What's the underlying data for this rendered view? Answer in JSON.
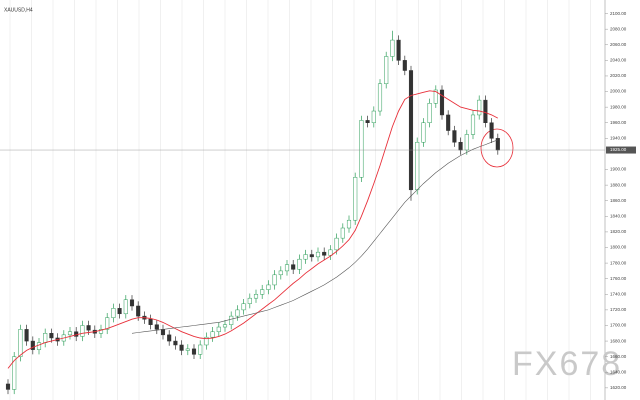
{
  "chart_data": {
    "type": "candlestick",
    "title": "XAUUSD,H4",
    "watermark": "FX678",
    "categories": [
      null,
      null,
      null,
      null,
      null,
      null,
      null,
      null,
      null,
      null,
      null,
      null,
      null,
      null,
      null,
      null,
      null,
      null,
      null,
      null,
      null,
      null,
      null,
      null,
      null,
      null,
      null,
      null,
      null,
      null,
      null,
      null,
      null,
      null,
      null,
      null,
      null,
      null,
      null,
      null,
      null,
      null,
      null,
      null,
      null,
      null,
      null,
      null,
      null,
      null,
      null,
      null,
      null,
      null,
      null,
      null,
      null,
      null,
      null,
      null,
      null,
      null,
      null,
      null,
      null,
      null,
      null,
      null,
      null,
      null,
      null,
      null,
      null,
      null,
      null,
      null,
      null,
      null,
      null,
      null
    ],
    "open": [
      1625,
      1618,
      1660,
      1695,
      1680,
      1669,
      1678,
      1690,
      1684,
      1680,
      1688,
      1692,
      1686,
      1700,
      1694,
      1690,
      1695,
      1710,
      1722,
      1715,
      1733,
      1725,
      1712,
      1708,
      1701,
      1695,
      1688,
      1680,
      1675,
      1668,
      1670,
      1663,
      1675,
      1685,
      1692,
      1698,
      1701,
      1712,
      1720,
      1728,
      1735,
      1740,
      1746,
      1752,
      1765,
      1770,
      1778,
      1772,
      1785,
      1791,
      1788,
      1794,
      1790,
      1797,
      1812,
      1825,
      1835,
      1890,
      1963,
      1960,
      1975,
      2010,
      2045,
      2066,
      2040,
      2027,
      1874,
      1935,
      1960,
      1985,
      2002,
      1970,
      1950,
      1935,
      1925,
      1945,
      1970,
      1989,
      1960,
      1940
    ],
    "high": [
      1631,
      1666,
      1701,
      1701,
      1686,
      1684,
      1696,
      1696,
      1690,
      1694,
      1698,
      1698,
      1706,
      1706,
      1700,
      1701,
      1716,
      1728,
      1728,
      1739,
      1739,
      1731,
      1718,
      1714,
      1707,
      1701,
      1694,
      1686,
      1681,
      1676,
      1676,
      1681,
      1691,
      1698,
      1704,
      1707,
      1718,
      1726,
      1734,
      1741,
      1746,
      1752,
      1758,
      1771,
      1776,
      1784,
      1784,
      1791,
      1797,
      1797,
      1800,
      1800,
      1803,
      1818,
      1831,
      1841,
      1896,
      1969,
      1969,
      1981,
      2016,
      2051,
      2078,
      2072,
      2046,
      2033,
      1941,
      1966,
      1991,
      2008,
      2008,
      1976,
      1956,
      1941,
      1951,
      1976,
      1995,
      1995,
      1966,
      1946
    ],
    "low": [
      1612,
      1612,
      1654,
      1674,
      1663,
      1663,
      1672,
      1678,
      1674,
      1674,
      1682,
      1680,
      1680,
      1688,
      1684,
      1684,
      1689,
      1704,
      1709,
      1709,
      1719,
      1706,
      1702,
      1695,
      1689,
      1682,
      1674,
      1669,
      1662,
      1662,
      1657,
      1657,
      1669,
      1679,
      1686,
      1692,
      1695,
      1706,
      1714,
      1722,
      1729,
      1734,
      1740,
      1746,
      1759,
      1764,
      1766,
      1766,
      1779,
      1782,
      1782,
      1784,
      1784,
      1791,
      1806,
      1819,
      1829,
      1884,
      1954,
      1954,
      1969,
      2004,
      2039,
      2034,
      2021,
      1860,
      1868,
      1929,
      1954,
      1979,
      1964,
      1944,
      1929,
      1919,
      1919,
      1939,
      1964,
      1954,
      1934,
      1919
    ],
    "close": [
      1618,
      1660,
      1695,
      1680,
      1669,
      1678,
      1690,
      1684,
      1680,
      1688,
      1692,
      1686,
      1700,
      1694,
      1690,
      1695,
      1710,
      1722,
      1715,
      1733,
      1725,
      1712,
      1708,
      1701,
      1695,
      1688,
      1680,
      1675,
      1668,
      1670,
      1663,
      1675,
      1685,
      1692,
      1698,
      1701,
      1712,
      1720,
      1728,
      1735,
      1740,
      1746,
      1752,
      1765,
      1770,
      1778,
      1772,
      1785,
      1791,
      1788,
      1794,
      1790,
      1797,
      1812,
      1825,
      1835,
      1890,
      1963,
      1960,
      1975,
      2010,
      2045,
      2066,
      2040,
      2027,
      1874,
      1935,
      1960,
      1985,
      2002,
      1970,
      1950,
      1935,
      1925,
      1945,
      1970,
      1989,
      1960,
      1940,
      1925
    ],
    "up_color": "#2e9e5a",
    "down_color": "#333333",
    "series": [
      {
        "color": "#e8303a",
        "values": [
          1645,
          1655,
          1662,
          1668,
          1672,
          1675,
          1678,
          1680,
          1682,
          1684,
          1686,
          1688,
          1690,
          1691,
          1692,
          1694,
          1696,
          1699,
          1702,
          1705,
          1708,
          1710,
          1710,
          1709,
          1707,
          1704,
          1700,
          1696,
          1692,
          1689,
          1686,
          1684,
          1683,
          1684,
          1686,
          1689,
          1693,
          1698,
          1703,
          1709,
          1715,
          1721,
          1727,
          1733,
          1740,
          1747,
          1754,
          1760,
          1767,
          1773,
          1779,
          1784,
          1789,
          1795,
          1802,
          1810,
          1822,
          1840,
          1860,
          1882,
          1905,
          1930,
          1955,
          1975,
          1990,
          1995,
          1997,
          1999,
          2001,
          2000,
          1995,
          1990,
          1985,
          1980,
          1978,
          1976,
          1975,
          1973,
          1970,
          1966
        ]
      },
      {
        "color": "#555555",
        "values": [
          null,
          null,
          null,
          null,
          null,
          null,
          null,
          null,
          null,
          null,
          null,
          null,
          null,
          null,
          null,
          null,
          null,
          null,
          null,
          null,
          1690,
          1691,
          1692,
          1693,
          1694,
          1695,
          1696,
          1697,
          1698,
          1699,
          1700,
          1701,
          1702,
          1703,
          1704,
          1706,
          1708,
          1710,
          1712,
          1714,
          1716,
          1718,
          1720,
          1723,
          1726,
          1729,
          1732,
          1736,
          1740,
          1744,
          1748,
          1752,
          1757,
          1762,
          1768,
          1774,
          1781,
          1789,
          1798,
          1808,
          1818,
          1828,
          1838,
          1848,
          1858,
          1866,
          1874,
          1882,
          1889,
          1896,
          1902,
          1908,
          1913,
          1918,
          1922,
          1926,
          1929,
          1932,
          1935,
          1938
        ]
      }
    ],
    "current_price": {
      "value": 1925,
      "label": "1925.00"
    },
    "ylim": [
      1607,
      2111
    ],
    "yticks": [
      {
        "value": 1620,
        "label": "1620.00"
      },
      {
        "value": 1640,
        "label": "1640.00"
      },
      {
        "value": 1660,
        "label": "1660.00"
      },
      {
        "value": 1680,
        "label": "1680.00"
      },
      {
        "value": 1700,
        "label": "1700.00"
      },
      {
        "value": 1720,
        "label": "1720.00"
      },
      {
        "value": 1740,
        "label": "1740.00"
      },
      {
        "value": 1760,
        "label": "1760.00"
      },
      {
        "value": 1780,
        "label": "1780.00"
      },
      {
        "value": 1800,
        "label": "1800.00"
      },
      {
        "value": 1820,
        "label": "1820.00"
      },
      {
        "value": 1840,
        "label": "1840.00"
      },
      {
        "value": 1860,
        "label": "1860.00"
      },
      {
        "value": 1880,
        "label": "1880.00"
      },
      {
        "value": 1900,
        "label": "1900.00"
      },
      {
        "value": 1940,
        "label": "1940.00"
      },
      {
        "value": 1960,
        "label": "1960.00"
      },
      {
        "value": 1980,
        "label": "1980.00"
      },
      {
        "value": 2000,
        "label": "2000.00"
      },
      {
        "value": 2020,
        "label": "2020.00"
      },
      {
        "value": 2040,
        "label": "2040.00"
      },
      {
        "value": 2060,
        "label": "2060.00"
      },
      {
        "value": 2080,
        "label": "2080.00"
      },
      {
        "value": 2100,
        "label": "2100.00"
      }
    ]
  }
}
